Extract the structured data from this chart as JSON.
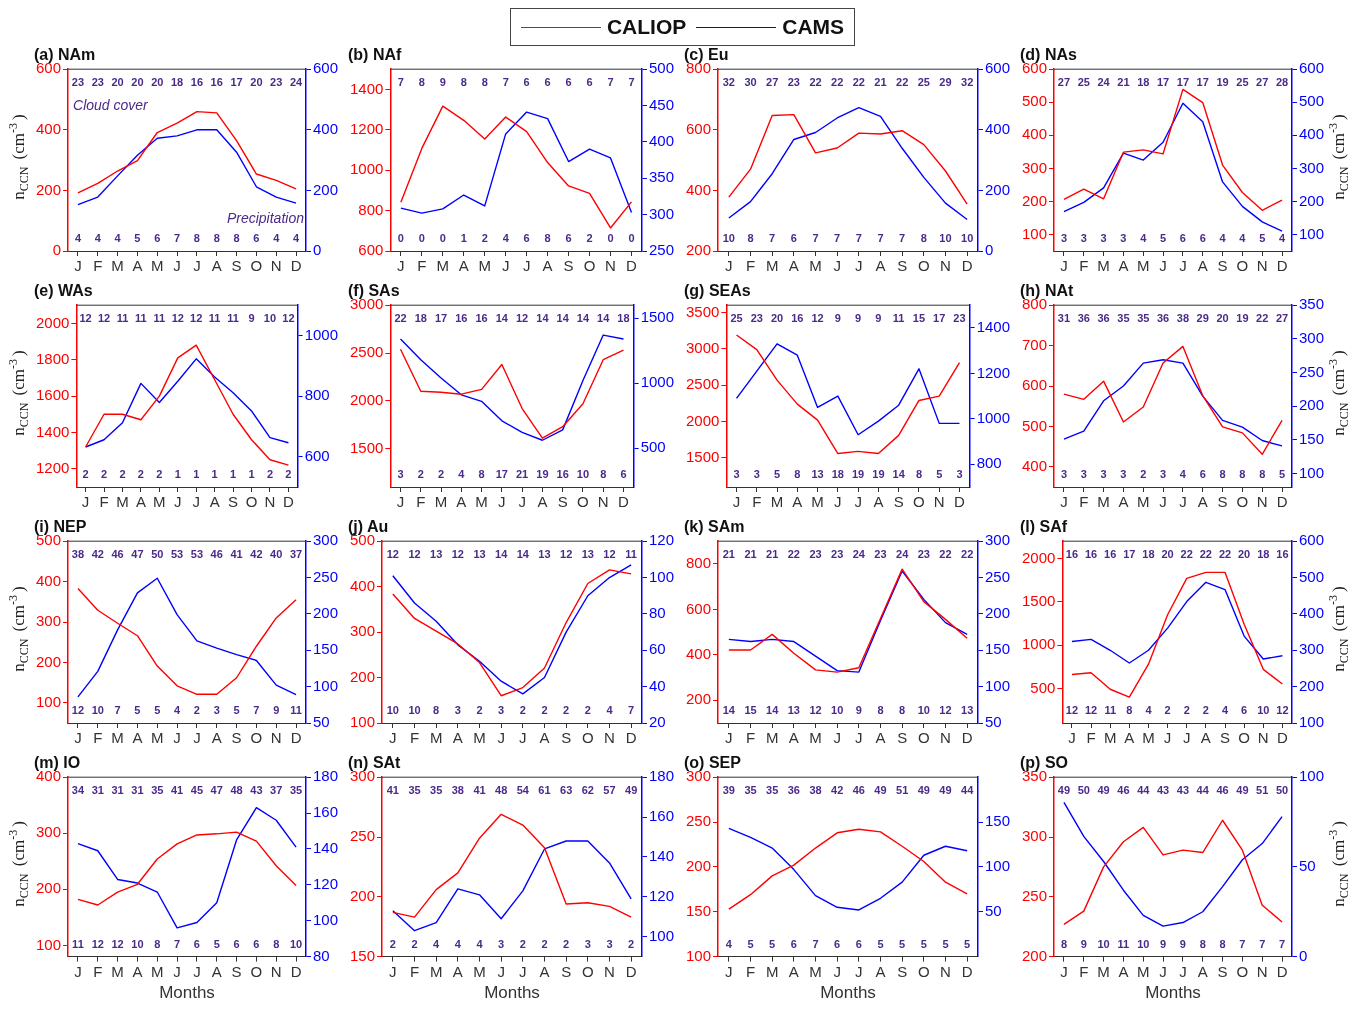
{
  "chart_data": [
    {
      "type": "line",
      "title": "(a) NAm",
      "categories": [
        "J",
        "F",
        "M",
        "A",
        "M",
        "J",
        "J",
        "A",
        "S",
        "O",
        "N",
        "D"
      ],
      "ylabel": "n$_{CCN}$ (cm$^{-3}$)",
      "legend": "top",
      "marker": "none",
      "ylim": [
        0,
        600
      ],
      "yticks": [
        0,
        200,
        400,
        600
      ],
      "y2lim": [
        0,
        600
      ],
      "y2ticks": [
        0,
        200,
        400,
        600
      ],
      "series": [
        {
          "name": "CALIOP",
          "color": "#ff0000",
          "values": [
            192,
            223,
            264,
            298,
            391,
            422,
            460,
            456,
            364,
            254,
            233,
            205
          ]
        },
        {
          "name": "CAMS",
          "color": "#0000ff",
          "axis": "y2",
          "values": [
            153,
            178,
            248,
            316,
            372,
            380,
            400,
            400,
            326,
            212,
            178,
            158
          ]
        }
      ],
      "annotations": [
        "23 23 20 20 20 18 16 16 17 20 23 24",
        "4 4 4 5 6 7 8 8 8 6 4 4",
        "Cloud cover",
        "Precipitation"
      ]
    },
    {
      "type": "line",
      "title": "(b) NAf",
      "categories": [
        "J",
        "F",
        "M",
        "A",
        "M",
        "J",
        "J",
        "A",
        "S",
        "O",
        "N",
        "D"
      ],
      "marker": "none",
      "ylim": [
        600,
        1500
      ],
      "yticks": [
        600,
        800,
        1000,
        1200,
        1400
      ],
      "y2lim": [
        250,
        500
      ],
      "y2ticks": [
        250,
        300,
        350,
        400,
        450,
        500
      ],
      "series": [
        {
          "color": "#ff0000",
          "values": [
            841,
            1108,
            1317,
            1247,
            1154,
            1263,
            1191,
            1038,
            922,
            885,
            714,
            843
          ]
        },
        {
          "color": "#0000ff",
          "axis": "y2",
          "values": [
            309,
            302,
            308,
            327,
            312,
            411,
            441,
            432,
            373,
            390,
            378,
            303
          ]
        }
      ],
      "annotations": [
        "7 8 9 8 8 7 6 6 6 6 7 7",
        "0 0 0 1 2 4 6 8 6 2 0 0"
      ]
    },
    {
      "type": "line",
      "title": "(c) Eu",
      "categories": [
        "J",
        "F",
        "M",
        "A",
        "M",
        "J",
        "J",
        "A",
        "S",
        "O",
        "N",
        "D"
      ],
      "marker": "none",
      "ylim": [
        200,
        800
      ],
      "yticks": [
        200,
        400,
        600,
        800
      ],
      "y2lim": [
        0,
        600
      ],
      "y2ticks": [
        0,
        200,
        400,
        600
      ],
      "series": [
        {
          "color": "#ff0000",
          "values": [
            378,
            470,
            647,
            650,
            524,
            540,
            589,
            586,
            597,
            551,
            464,
            355
          ]
        },
        {
          "color": "#0000ff",
          "axis": "y2",
          "values": [
            109,
            163,
            255,
            368,
            391,
            439,
            473,
            444,
            339,
            243,
            158,
            104
          ]
        }
      ],
      "annotations": [
        "32 30 27 23 22 22 22 21 22 25 29 32",
        "10 8 7 6 7 7 7 7 7 8 10 10"
      ]
    },
    {
      "type": "line",
      "title": "(d) NAs",
      "categories": [
        "J",
        "F",
        "M",
        "A",
        "M",
        "J",
        "J",
        "A",
        "S",
        "O",
        "N",
        "D"
      ],
      "y2label": "n$_{CCN}$ (cm$^{-3}$)",
      "marker": "none",
      "ylim": [
        50,
        600
      ],
      "yticks": [
        100,
        200,
        300,
        400,
        500,
        600
      ],
      "y2lim": [
        50,
        600
      ],
      "y2ticks": [
        100,
        200,
        300,
        400,
        500,
        600
      ],
      "series": [
        {
          "color": "#ff0000",
          "values": [
            206,
            237,
            208,
            349,
            356,
            344,
            539,
            499,
            310,
            227,
            173,
            204
          ]
        },
        {
          "color": "#0000ff",
          "axis": "y2",
          "values": [
            169,
            197,
            241,
            346,
            325,
            379,
            497,
            441,
            259,
            185,
            138,
            110
          ]
        }
      ],
      "annotations": [
        "27 25 24 21 18 17 17 17 19 25 27 28",
        "3 3 3 3 4 5 6 6 4 4 5 4"
      ]
    },
    {
      "type": "line",
      "title": "(e) WAs",
      "categories": [
        "J",
        "F",
        "M",
        "A",
        "M",
        "J",
        "J",
        "A",
        "S",
        "O",
        "N",
        "D"
      ],
      "ylabel": "n$_{CCN}$ (cm$^{-3}$)",
      "marker": "none",
      "ylim": [
        1100,
        2100
      ],
      "yticks": [
        1200,
        1400,
        1600,
        1800,
        2000
      ],
      "y2lim": [
        500,
        1100
      ],
      "y2ticks": [
        600,
        800,
        1000
      ],
      "series": [
        {
          "color": "#ff0000",
          "values": [
            1320,
            1500,
            1500,
            1470,
            1600,
            1810,
            1880,
            1690,
            1500,
            1360,
            1250,
            1220
          ]
        },
        {
          "color": "#0000ff",
          "axis": "y2",
          "values": [
            632,
            656,
            712,
            842,
            779,
            849,
            923,
            863,
            811,
            751,
            663,
            646
          ]
        }
      ],
      "annotations": [
        "12 12 11 11 11 12 12 11 11 9 10 12",
        "2 2 2 2 2 1 1 1 1 1 2 2"
      ]
    },
    {
      "type": "line",
      "title": "(f) SAs",
      "categories": [
        "J",
        "F",
        "M",
        "A",
        "M",
        "J",
        "J",
        "A",
        "S",
        "O",
        "N",
        "D"
      ],
      "marker": "none",
      "ylim": [
        1100,
        3000
      ],
      "yticks": [
        1500,
        2000,
        2500,
        3000
      ],
      "y2lim": [
        200,
        1600
      ],
      "y2ticks": [
        500,
        1000,
        1500
      ],
      "series": [
        {
          "color": "#ff0000",
          "values": [
            2540,
            2100,
            2090,
            2070,
            2120,
            2380,
            1920,
            1610,
            1730,
            1970,
            2430,
            2530
          ]
        },
        {
          "color": "#0000ff",
          "axis": "y2",
          "values": [
            1340,
            1180,
            1040,
            910,
            860,
            710,
            620,
            560,
            640,
            1020,
            1370,
            1340
          ]
        }
      ],
      "annotations": [
        "22 18 17 16 16 14 12 14 14 14 14 18",
        "3 2 2 4 8 17 21 19 16 10 8 6"
      ]
    },
    {
      "type": "line",
      "title": "(g) SEAs",
      "categories": [
        "J",
        "F",
        "M",
        "A",
        "M",
        "J",
        "J",
        "A",
        "S",
        "O",
        "N",
        "D"
      ],
      "marker": "none",
      "ylim": [
        1100,
        3600
      ],
      "yticks": [
        1500,
        2000,
        2500,
        3000,
        3500
      ],
      "y2lim": [
        700,
        1500
      ],
      "y2ticks": [
        800,
        1000,
        1200,
        1400
      ],
      "series": [
        {
          "color": "#ff0000",
          "values": [
            3190,
            2990,
            2570,
            2240,
            2020,
            1560,
            1590,
            1560,
            1810,
            2290,
            2350,
            2810
          ]
        },
        {
          "color": "#0000ff",
          "axis": "y2",
          "values": [
            1090,
            1210,
            1330,
            1280,
            1050,
            1100,
            930,
            990,
            1060,
            1220,
            980,
            980
          ]
        }
      ],
      "annotations": [
        "25 23 20 16 12 9 9 9 11 15 17 23",
        "3 3 5 8 13 18 19 19 14 8 5 3"
      ]
    },
    {
      "type": "line",
      "title": "(h) NAt",
      "categories": [
        "J",
        "F",
        "M",
        "A",
        "M",
        "J",
        "J",
        "A",
        "S",
        "O",
        "N",
        "D"
      ],
      "y2label": "n$_{CCN}$ (cm$^{-3}$)",
      "marker": "none",
      "ylim": [
        350,
        800
      ],
      "yticks": [
        400,
        500,
        600,
        700,
        800
      ],
      "y2lim": [
        80,
        350
      ],
      "y2ticks": [
        100,
        150,
        200,
        250,
        300,
        350
      ],
      "series": [
        {
          "color": "#ff0000",
          "values": [
            580,
            567,
            612,
            511,
            548,
            657,
            698,
            576,
            499,
            484,
            431,
            515
          ]
        },
        {
          "color": "#0000ff",
          "axis": "y2",
          "values": [
            151,
            163,
            208,
            230,
            264,
            269,
            264,
            215,
            179,
            169,
            149,
            141
          ]
        }
      ],
      "annotations": [
        "31 36 36 35 35 36 38 29 20 19 22 27",
        "3 3 3 3 2 3 4 6 8 8 8 5"
      ]
    },
    {
      "type": "line",
      "title": "(i) NEP",
      "categories": [
        "J",
        "F",
        "M",
        "A",
        "M",
        "J",
        "J",
        "A",
        "S",
        "O",
        "N",
        "D"
      ],
      "ylabel": "n$_{CCN}$ (cm$^{-3}$)",
      "marker": "none",
      "ylim": [
        50,
        500
      ],
      "yticks": [
        100,
        200,
        300,
        400,
        500
      ],
      "y2lim": [
        50,
        300
      ],
      "y2ticks": [
        50,
        100,
        150,
        200,
        250,
        300
      ],
      "series": [
        {
          "color": "#ff0000",
          "values": [
            383,
            329,
            297,
            266,
            191,
            142,
            121,
            121,
            162,
            240,
            310,
            355
          ]
        },
        {
          "color": "#0000ff",
          "axis": "y2",
          "values": [
            86,
            121,
            178,
            229,
            249,
            199,
            163,
            153,
            144,
            136,
            102,
            89
          ]
        }
      ],
      "annotations": [
        "38 42 46 47 50 53 53 46 41 42 40 37",
        "12 10 7 5 5 4 2 3 5 7 9 11"
      ]
    },
    {
      "type": "line",
      "title": "(j) Au",
      "categories": [
        "J",
        "F",
        "M",
        "A",
        "M",
        "J",
        "J",
        "A",
        "S",
        "O",
        "N",
        "D"
      ],
      "marker": "none",
      "ylim": [
        100,
        500
      ],
      "yticks": [
        100,
        200,
        300,
        400,
        500
      ],
      "y2lim": [
        20,
        120
      ],
      "y2ticks": [
        20,
        40,
        60,
        80,
        100,
        120
      ],
      "series": [
        {
          "color": "#ff0000",
          "values": [
            384,
            330,
            302,
            274,
            233,
            160,
            178,
            221,
            321,
            407,
            437,
            428
          ]
        },
        {
          "color": "#0000ff",
          "axis": "y2",
          "values": [
            101,
            86,
            76,
            63,
            54,
            43,
            36,
            45,
            70,
            90,
            100,
            107
          ]
        }
      ],
      "annotations": [
        "12 12 13 12 13 14 14 13 12 13 12 11",
        "10 10 8 3 2 3 2 2 2 2 4 7"
      ]
    },
    {
      "type": "line",
      "title": "(k) SAm",
      "categories": [
        "J",
        "F",
        "M",
        "A",
        "M",
        "J",
        "J",
        "A",
        "S",
        "O",
        "N",
        "D"
      ],
      "marker": "none",
      "ylim": [
        100,
        900
      ],
      "yticks": [
        200,
        400,
        600,
        800
      ],
      "y2lim": [
        50,
        300
      ],
      "y2ticks": [
        50,
        100,
        150,
        200,
        250,
        300
      ],
      "series": [
        {
          "color": "#ff0000",
          "values": [
            421,
            421,
            490,
            407,
            334,
            324,
            343,
            560,
            777,
            634,
            556,
            473
          ]
        },
        {
          "color": "#0000ff",
          "axis": "y2",
          "values": [
            165,
            162,
            165,
            162,
            142,
            122,
            120,
            191,
            259,
            220,
            188,
            172
          ]
        }
      ],
      "annotations": [
        "21 21 21 22 23 23 24 23 24 23 22 22",
        "14 15 14 13 12 10 9 8 8 10 12 13"
      ]
    },
    {
      "type": "line",
      "title": "(l) SAf",
      "categories": [
        "J",
        "F",
        "M",
        "A",
        "M",
        "J",
        "J",
        "A",
        "S",
        "O",
        "N",
        "D"
      ],
      "y2label": "n$_{CCN}$ (cm$^{-3}$)",
      "marker": "none",
      "ylim": [
        100,
        2200
      ],
      "yticks": [
        500,
        1000,
        1500,
        2000
      ],
      "y2lim": [
        100,
        600
      ],
      "y2ticks": [
        100,
        200,
        300,
        400,
        500,
        600
      ],
      "series": [
        {
          "color": "#ff0000",
          "values": [
            660,
            680,
            490,
            400,
            780,
            1350,
            1770,
            1840,
            1840,
            1240,
            720,
            550
          ]
        },
        {
          "color": "#0000ff",
          "axis": "y2",
          "values": [
            324,
            330,
            300,
            265,
            300,
            361,
            434,
            487,
            467,
            339,
            276,
            285
          ]
        }
      ],
      "annotations": [
        "16 16 16 17 18 20 22 22 22 20 18 16",
        "12 12 11 8 4 2 2 2 4 6 10 12"
      ]
    },
    {
      "type": "line",
      "title": "(m) IO",
      "categories": [
        "J",
        "F",
        "M",
        "A",
        "M",
        "J",
        "J",
        "A",
        "S",
        "O",
        "N",
        "D"
      ],
      "xlabel": "Months",
      "ylabel": "n$_{CCN}$ (cm$^{-3}$)",
      "marker": "none",
      "ylim": [
        80,
        400
      ],
      "yticks": [
        100,
        200,
        300,
        400
      ],
      "y2lim": [
        80,
        180
      ],
      "y2ticks": [
        80,
        100,
        120,
        140,
        160,
        180
      ],
      "series": [
        {
          "color": "#ff0000",
          "values": [
            182,
            172,
            195,
            209,
            254,
            281,
            297,
            299,
            302,
            286,
            242,
            207
          ]
        },
        {
          "color": "#0000ff",
          "axis": "y2",
          "values": [
            143,
            139,
            123,
            121,
            116,
            96,
            99,
            110,
            145,
            163,
            156,
            141
          ]
        }
      ],
      "annotations": [
        "34 31 31 31 35 41 45 47 48 43 37 35",
        "11 12 12 10 8 7 6 5 6 6 8 10"
      ]
    },
    {
      "type": "line",
      "title": "(n) SAt",
      "categories": [
        "J",
        "F",
        "M",
        "A",
        "M",
        "J",
        "J",
        "A",
        "S",
        "O",
        "N",
        "D"
      ],
      "xlabel": "Months",
      "marker": "none",
      "ylim": [
        150,
        300
      ],
      "yticks": [
        150,
        200,
        250,
        300
      ],
      "y2lim": [
        90,
        180
      ],
      "y2ticks": [
        100,
        120,
        140,
        160,
        180
      ],
      "series": [
        {
          "color": "#ff0000",
          "values": [
            187,
            183,
            206,
            220,
            249,
            269,
            260,
            241,
            194,
            195,
            192,
            183
          ]
        },
        {
          "color": "#0000ff",
          "axis": "y2",
          "values": [
            113,
            103,
            107,
            124,
            121,
            109,
            123,
            144,
            148,
            148,
            137,
            119
          ]
        }
      ],
      "annotations": [
        "41 35 35 38 41 48 54 61 63 62 57 49",
        "2 2 4 4 4 3 2 2 2 3 3 2"
      ]
    },
    {
      "type": "line",
      "title": "(o) SEP",
      "categories": [
        "J",
        "F",
        "M",
        "A",
        "M",
        "J",
        "J",
        "A",
        "S",
        "O",
        "N",
        "D"
      ],
      "xlabel": "Months",
      "marker": "none",
      "ylim": [
        100,
        300
      ],
      "yticks": [
        100,
        150,
        200,
        250,
        300
      ],
      "y2lim": [
        0,
        200
      ],
      "y2ticks": [
        50,
        100,
        150
      ],
      "series": [
        {
          "color": "#ff0000",
          "values": [
            153,
            169,
            190,
            202,
            221,
            238,
            242,
            239,
            223,
            206,
            183,
            170
          ]
        },
        {
          "color": "#0000ff",
          "axis": "y2",
          "values": [
            143,
            133,
            121,
            97,
            68,
            55,
            52,
            65,
            83,
            113,
            123,
            118
          ]
        }
      ],
      "annotations": [
        "39 35 35 36 38 42 46 49 51 49 49 44",
        "4 5 5 6 7 6 6 5 5 5 5 5"
      ]
    },
    {
      "type": "line",
      "title": "(p) SO",
      "categories": [
        "J",
        "F",
        "M",
        "A",
        "M",
        "J",
        "J",
        "A",
        "S",
        "O",
        "N",
        "D"
      ],
      "xlabel": "Months",
      "y2label": "n$_{CCN}$ (cm$^{-3}$)",
      "marker": "none",
      "ylim": [
        200,
        350
      ],
      "yticks": [
        200,
        250,
        300,
        350
      ],
      "y2lim": [
        0,
        100
      ],
      "y2ticks": [
        0,
        50,
        100
      ],
      "series": [
        {
          "color": "#ff0000",
          "values": [
            227,
            238,
            275,
            296,
            308,
            285,
            289,
            287,
            314,
            289,
            243,
            229
          ]
        },
        {
          "color": "#0000ff",
          "axis": "y2",
          "values": [
            86,
            67,
            53,
            37,
            23,
            17,
            19,
            25,
            39,
            54,
            63,
            78
          ]
        }
      ],
      "annotations": [
        "49 50 49 46 44 43 43 44 46 49 51 50",
        "8 9 10 11 10 9 9 8 8 7 7 7"
      ]
    }
  ]
}
